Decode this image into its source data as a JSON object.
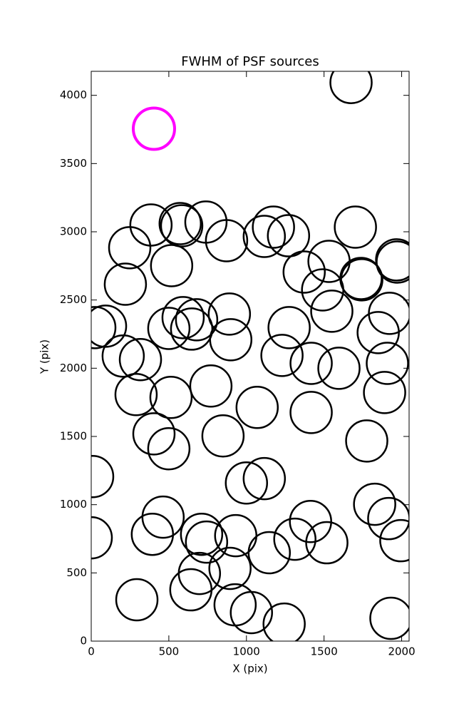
{
  "chart_data": {
    "type": "scatter",
    "title": "FWHM of PSF sources",
    "x_label": "X (pix)",
    "y_label": "Y (pix)",
    "xlim": [
      0,
      2048
    ],
    "ylim": [
      0,
      4176
    ],
    "xticks": [
      0,
      500,
      1000,
      1500,
      2000
    ],
    "yticks": [
      0,
      500,
      1000,
      1500,
      2000,
      2500,
      3000,
      3500,
      4000
    ],
    "color": "#000000",
    "x": [
      1674,
      385,
      573,
      583,
      739,
      872,
      1115,
      1174,
      1271,
      1702,
      248,
      518,
      1372,
      1532,
      1738,
      1743,
      220,
      1491,
      1550,
      1972,
      1968,
      92,
      23,
      500,
      592,
      647,
      679,
      890,
      899,
      1275,
      1849,
      1922,
      206,
      317,
      1229,
      1417,
      1596,
      1908,
      1890,
      289,
      514,
      771,
      1069,
      1417,
      404,
      849,
      1775,
      500,
      9,
      1000,
      1115,
      1826,
      1917,
      463,
      394,
      711,
      743,
      931,
      1413,
      1312,
      1518,
      1147,
      1995,
      0,
      697,
      894,
      642,
      294,
      927,
      1032,
      1243,
      1931
    ],
    "y": [
      4094,
      3050,
      3060,
      3044,
      3071,
      2935,
      2966,
      3034,
      2971,
      3034,
      2883,
      2752,
      2705,
      2783,
      2658,
      2648,
      2616,
      2574,
      2418,
      2778,
      2794,
      2308,
      2298,
      2292,
      2371,
      2287,
      2355,
      2397,
      2209,
      2298,
      2261,
      2402,
      2089,
      2063,
      2094,
      2036,
      2000,
      2036,
      1822,
      1807,
      1786,
      1870,
      1713,
      1676,
      1519,
      1504,
      1467,
      1410,
      1206,
      1159,
      1191,
      1003,
      898,
      909,
      783,
      783,
      726,
      773,
      877,
      747,
      721,
      648,
      736,
      757,
      496,
      533,
      376,
      303,
      266,
      209,
      125,
      167
    ],
    "highlight": {
      "x": 404,
      "y": 3755,
      "color": "#ff00ff"
    }
  }
}
